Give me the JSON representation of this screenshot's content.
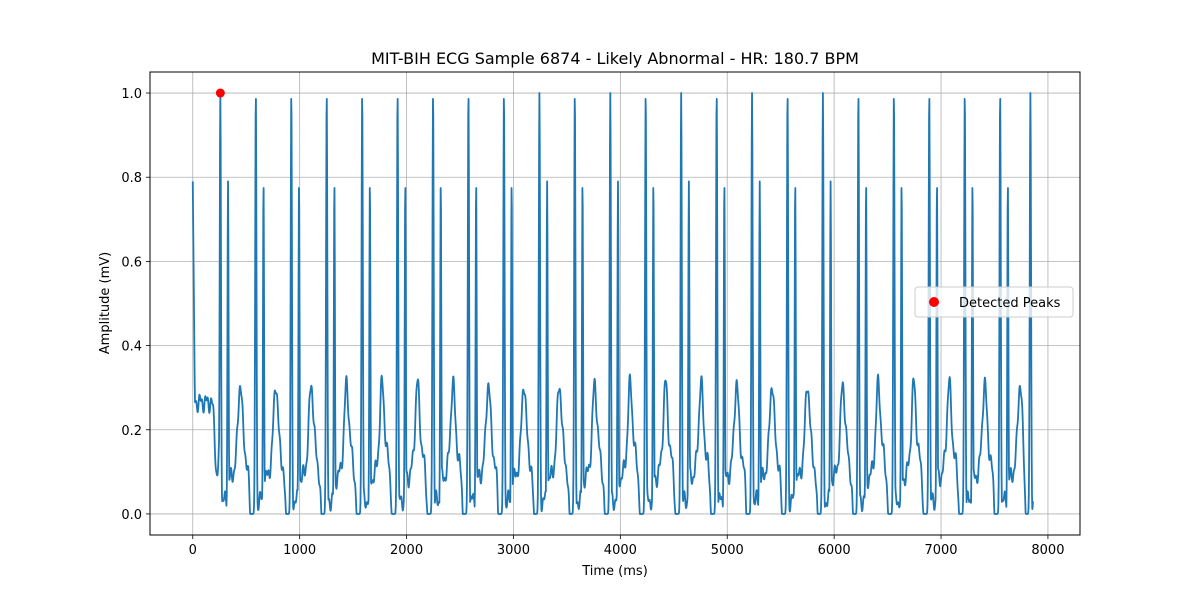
{
  "chart_data": {
    "type": "line",
    "title": "MIT-BIH ECG Sample 6874 - Likely Abnormal - HR: 180.7 BPM",
    "xlabel": "Time (ms)",
    "ylabel": "Amplitude (mV)",
    "xlim": [
      -400,
      8300
    ],
    "ylim": [
      -0.05,
      1.05
    ],
    "x_ticks": [
      0,
      1000,
      2000,
      3000,
      4000,
      5000,
      6000,
      7000,
      8000
    ],
    "x_tick_labels": [
      "0",
      "1000",
      "2000",
      "3000",
      "4000",
      "5000",
      "6000",
      "7000",
      "8000"
    ],
    "y_ticks": [
      0.0,
      0.2,
      0.4,
      0.6,
      0.8,
      1.0
    ],
    "y_tick_labels": [
      "0.0",
      "0.2",
      "0.4",
      "0.6",
      "0.8",
      "1.0"
    ],
    "grid": true,
    "legend_position": "center-right",
    "colors": {
      "signal": "#1f77b4",
      "peaks": "#ff0000",
      "grid": "#b0b0b0"
    },
    "signal": {
      "duration_ms": 7860,
      "start_value": 0.79,
      "end_value": 0.03,
      "beat_pattern": "tall R peak (1.0) followed ~70 ms later by secondary spike (0.79); baseline ~0.0-0.27",
      "primary_peak_times_ms": [
        258,
        590,
        922,
        1253,
        1585,
        1916,
        2248,
        2579,
        2911,
        3243,
        3574,
        3906,
        4237,
        4569,
        4901,
        5232,
        5564,
        5895,
        6227,
        6559,
        6890,
        7222,
        7553,
        7836
      ],
      "primary_peak_amplitude": 1.0,
      "secondary_peak_offset_ms": 72,
      "secondary_peak_amplitude": 0.79,
      "wave_bump_amplitude": 0.27
    },
    "series": [
      {
        "name": "Detected Peaks",
        "type": "scatter",
        "x": [
          258
        ],
        "y": [
          1.0
        ]
      }
    ]
  }
}
